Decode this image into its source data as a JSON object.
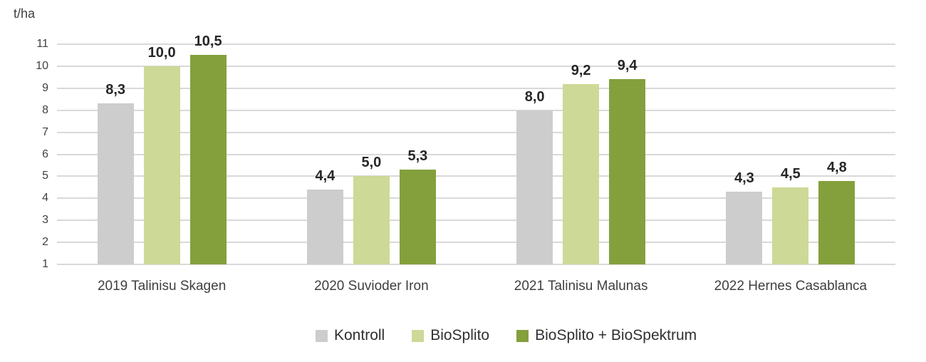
{
  "chart_data": {
    "type": "bar",
    "title": "",
    "unit_label": "t/ha",
    "xlabel": "",
    "ylabel": "t/ha",
    "categories": [
      "2019 Talinisu Skagen",
      "2020 Suvioder Iron",
      "2021 Talinisu Malunas",
      "2022 Hernes Casablanca"
    ],
    "series": [
      {
        "name": "Kontroll",
        "color": "#cdcdcd",
        "values": [
          8.3,
          4.4,
          8.0,
          4.3
        ],
        "value_labels": [
          "8,3",
          "4,4",
          "8,0",
          "4,3"
        ]
      },
      {
        "name": "BioSplito",
        "color": "#cdd996",
        "values": [
          10.0,
          5.0,
          9.2,
          4.5
        ],
        "value_labels": [
          "10,0",
          "5,0",
          "9,2",
          "4,5"
        ]
      },
      {
        "name": "BioSplito + BioSpektrum",
        "color": "#84a03c",
        "values": [
          10.5,
          5.3,
          9.4,
          4.8
        ],
        "value_labels": [
          "10,5",
          "5,3",
          "9,4",
          "4,8"
        ]
      }
    ],
    "y_axis": {
      "min": 1,
      "max": 11,
      "step": 1,
      "tick_labels": [
        "1",
        "2",
        "3",
        "4",
        "5",
        "6",
        "7",
        "8",
        "9",
        "10",
        "11"
      ]
    },
    "grid": true,
    "gridline_color": "#d9d9d9",
    "legend_position": "bottom",
    "decimal_separator": ","
  }
}
